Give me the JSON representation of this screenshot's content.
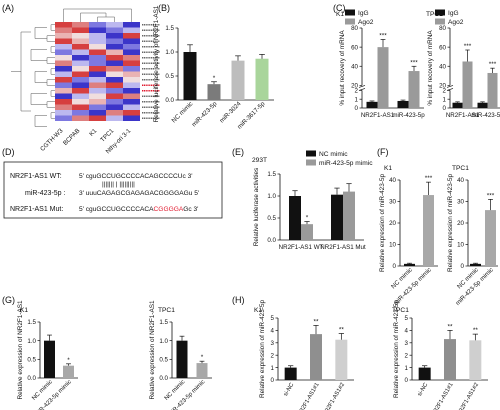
{
  "panel_labels": [
    "(A)",
    "(B)",
    "(C)",
    "(D)",
    "(E)",
    "(F)",
    "(G)",
    "(H)"
  ],
  "heatmap": {
    "columns": [
      "CGTH-W3",
      "BCPAB",
      "K1",
      "TPC1",
      "Nthy-ori 3-1"
    ],
    "rows": 18
  },
  "sequence": {
    "wt_label": "NR2F1-AS1 WT:",
    "wt_prefix": "5' cguGCCUGCCCCACAGCCCCUc 3'",
    "mir_label": "miR-423-5p :",
    "mir_seq": "3' uuuCAGAGCGAGAGACGGGGAGu 5'",
    "mut_label": "NR2F1-AS1 Mut:",
    "mut_prefix": "5' cguGCCUGCCCCACA",
    "mut_red": "CGGGGA",
    "mut_suffix": "Gc 3'",
    "bars": "|||||||  | |||||||||"
  },
  "colors": {
    "black": "#111111",
    "dark_gray": "#7b7b7b",
    "light_gray": "#bdbdbd",
    "light_green": "#a9d59b",
    "mut_red": "#e0182d"
  },
  "chart_data": [
    {
      "panel": "B",
      "type": "bar",
      "categories": [
        "NC mimic",
        "miR-423-5p",
        "miR-3024",
        "miR-3617-5p"
      ],
      "values": [
        1.0,
        0.33,
        0.82,
        0.86
      ],
      "errors": [
        0.15,
        0.05,
        0.1,
        0.09
      ],
      "significance": [
        "",
        "*",
        "",
        ""
      ],
      "ylabel": "Relative luciferase activity of NR2F1-AS1",
      "yticks": [
        0.0,
        0.5,
        1.0,
        1.5
      ],
      "ylim": [
        0,
        1.5
      ],
      "bar_colors": [
        "#111111",
        "#7b7b7b",
        "#bdbdbd",
        "#a9d59b"
      ]
    },
    {
      "panel": "C",
      "type": "bar",
      "title": "K1",
      "categories": [
        "NR2F1-AS1",
        "miR-423-5p"
      ],
      "series": [
        {
          "name": "IgG",
          "values": [
            0.7,
            0.8
          ],
          "errors": [
            0.1,
            0.1
          ]
        },
        {
          "name": "Ago2",
          "values": [
            60,
            35
          ],
          "errors": [
            8,
            5
          ]
        }
      ],
      "significance": [
        "***",
        "***"
      ],
      "ylabel": "% input recovery of mRNA",
      "yticks": [
        0,
        1,
        2,
        20,
        40,
        60,
        80
      ],
      "ylim": [
        0,
        80
      ],
      "axis_break": [
        2,
        20
      ]
    },
    {
      "panel": "C",
      "type": "bar",
      "title": "TPC1",
      "categories": [
        "NR2F1-AS1",
        "miR-423-5p"
      ],
      "series": [
        {
          "name": "IgG",
          "values": [
            0.6,
            0.6
          ],
          "errors": [
            0.1,
            0.1
          ]
        },
        {
          "name": "Ago2",
          "values": [
            45,
            33
          ],
          "errors": [
            12,
            5
          ]
        }
      ],
      "significance": [
        "***",
        "***"
      ],
      "ylabel": "% input recovery of mRNA",
      "yticks": [
        0,
        1,
        2,
        20,
        40,
        60,
        80
      ],
      "ylim": [
        0,
        80
      ],
      "axis_break": [
        2,
        20
      ]
    },
    {
      "panel": "E",
      "type": "bar",
      "title": "293T",
      "categories": [
        "NR2F1-AS1 WT",
        "NR2F1-AS1 Mut"
      ],
      "series": [
        {
          "name": "NC mimic",
          "values": [
            1.0,
            1.03
          ],
          "errors": [
            0.12,
            0.15
          ]
        },
        {
          "name": "miR-423-5p mimic",
          "values": [
            0.36,
            1.1
          ],
          "errors": [
            0.06,
            0.18
          ]
        }
      ],
      "significance": [
        "*",
        ""
      ],
      "ylabel": "Relative luciferase activities",
      "yticks": [
        0.0,
        0.5,
        1.0,
        1.5
      ],
      "ylim": [
        0,
        1.5
      ]
    },
    {
      "panel": "F",
      "type": "bar",
      "title": "K1",
      "categories": [
        "NC mimic",
        "miR-423-5p mimic"
      ],
      "values": [
        1.0,
        33
      ],
      "errors": [
        0.3,
        6
      ],
      "significance": [
        "",
        "***"
      ],
      "ylabel": "Relative expression of miR-423-5p",
      "yticks": [
        0,
        10,
        20,
        30,
        40
      ],
      "ylim": [
        0,
        40
      ]
    },
    {
      "panel": "F",
      "type": "bar",
      "title": "TPC1",
      "categories": [
        "NC mimic",
        "miR-423-5p mimic"
      ],
      "values": [
        1.0,
        26
      ],
      "errors": [
        0.3,
        5
      ],
      "significance": [
        "",
        "***"
      ],
      "ylabel": "Relative expression of miR-423-5p",
      "yticks": [
        0,
        10,
        20,
        30,
        40
      ],
      "ylim": [
        0,
        40
      ]
    },
    {
      "panel": "G",
      "type": "bar",
      "title": "K1",
      "categories": [
        "NC mimic",
        "miR-423-5p mimic"
      ],
      "values": [
        1.0,
        0.33
      ],
      "errors": [
        0.15,
        0.05
      ],
      "significance": [
        "",
        "*"
      ],
      "ylabel": "Relative expression of NR2F1-AS1",
      "yticks": [
        0.0,
        0.5,
        1.0,
        1.5
      ],
      "ylim": [
        0,
        1.5
      ]
    },
    {
      "panel": "G",
      "type": "bar",
      "title": "TPC1",
      "categories": [
        "NC mimic",
        "miR-423-5p mimic"
      ],
      "values": [
        1.0,
        0.4
      ],
      "errors": [
        0.12,
        0.05
      ],
      "significance": [
        "",
        "*"
      ],
      "ylabel": "Relative expression of NR2F1-AS1",
      "yticks": [
        0.0,
        0.5,
        1.0,
        1.5
      ],
      "ylim": [
        0,
        1.5
      ]
    },
    {
      "panel": "H",
      "type": "bar",
      "title": "K1",
      "categories": [
        "si-NC",
        "si-NR2F1-AS1#1",
        "si-NR2F1-AS1#2"
      ],
      "values": [
        1.0,
        3.7,
        3.25
      ],
      "errors": [
        0.15,
        0.7,
        0.5
      ],
      "significance": [
        "",
        "**",
        "**"
      ],
      "ylabel": "Relative expression of miR-423-5p",
      "yticks": [
        0,
        1,
        2,
        3,
        4,
        5
      ],
      "ylim": [
        0,
        5
      ]
    },
    {
      "panel": "H",
      "type": "bar",
      "title": "TPC1",
      "categories": [
        "si-NC",
        "si-NR2F1-AS1#1",
        "si-NR2F1-AS1#2"
      ],
      "values": [
        1.0,
        3.3,
        3.2
      ],
      "errors": [
        0.15,
        0.7,
        0.5
      ],
      "significance": [
        "",
        "**",
        "**"
      ],
      "ylabel": "Relative expression of miR-423-5p",
      "yticks": [
        0,
        1,
        2,
        3,
        4,
        5
      ],
      "ylim": [
        0,
        5
      ]
    }
  ]
}
